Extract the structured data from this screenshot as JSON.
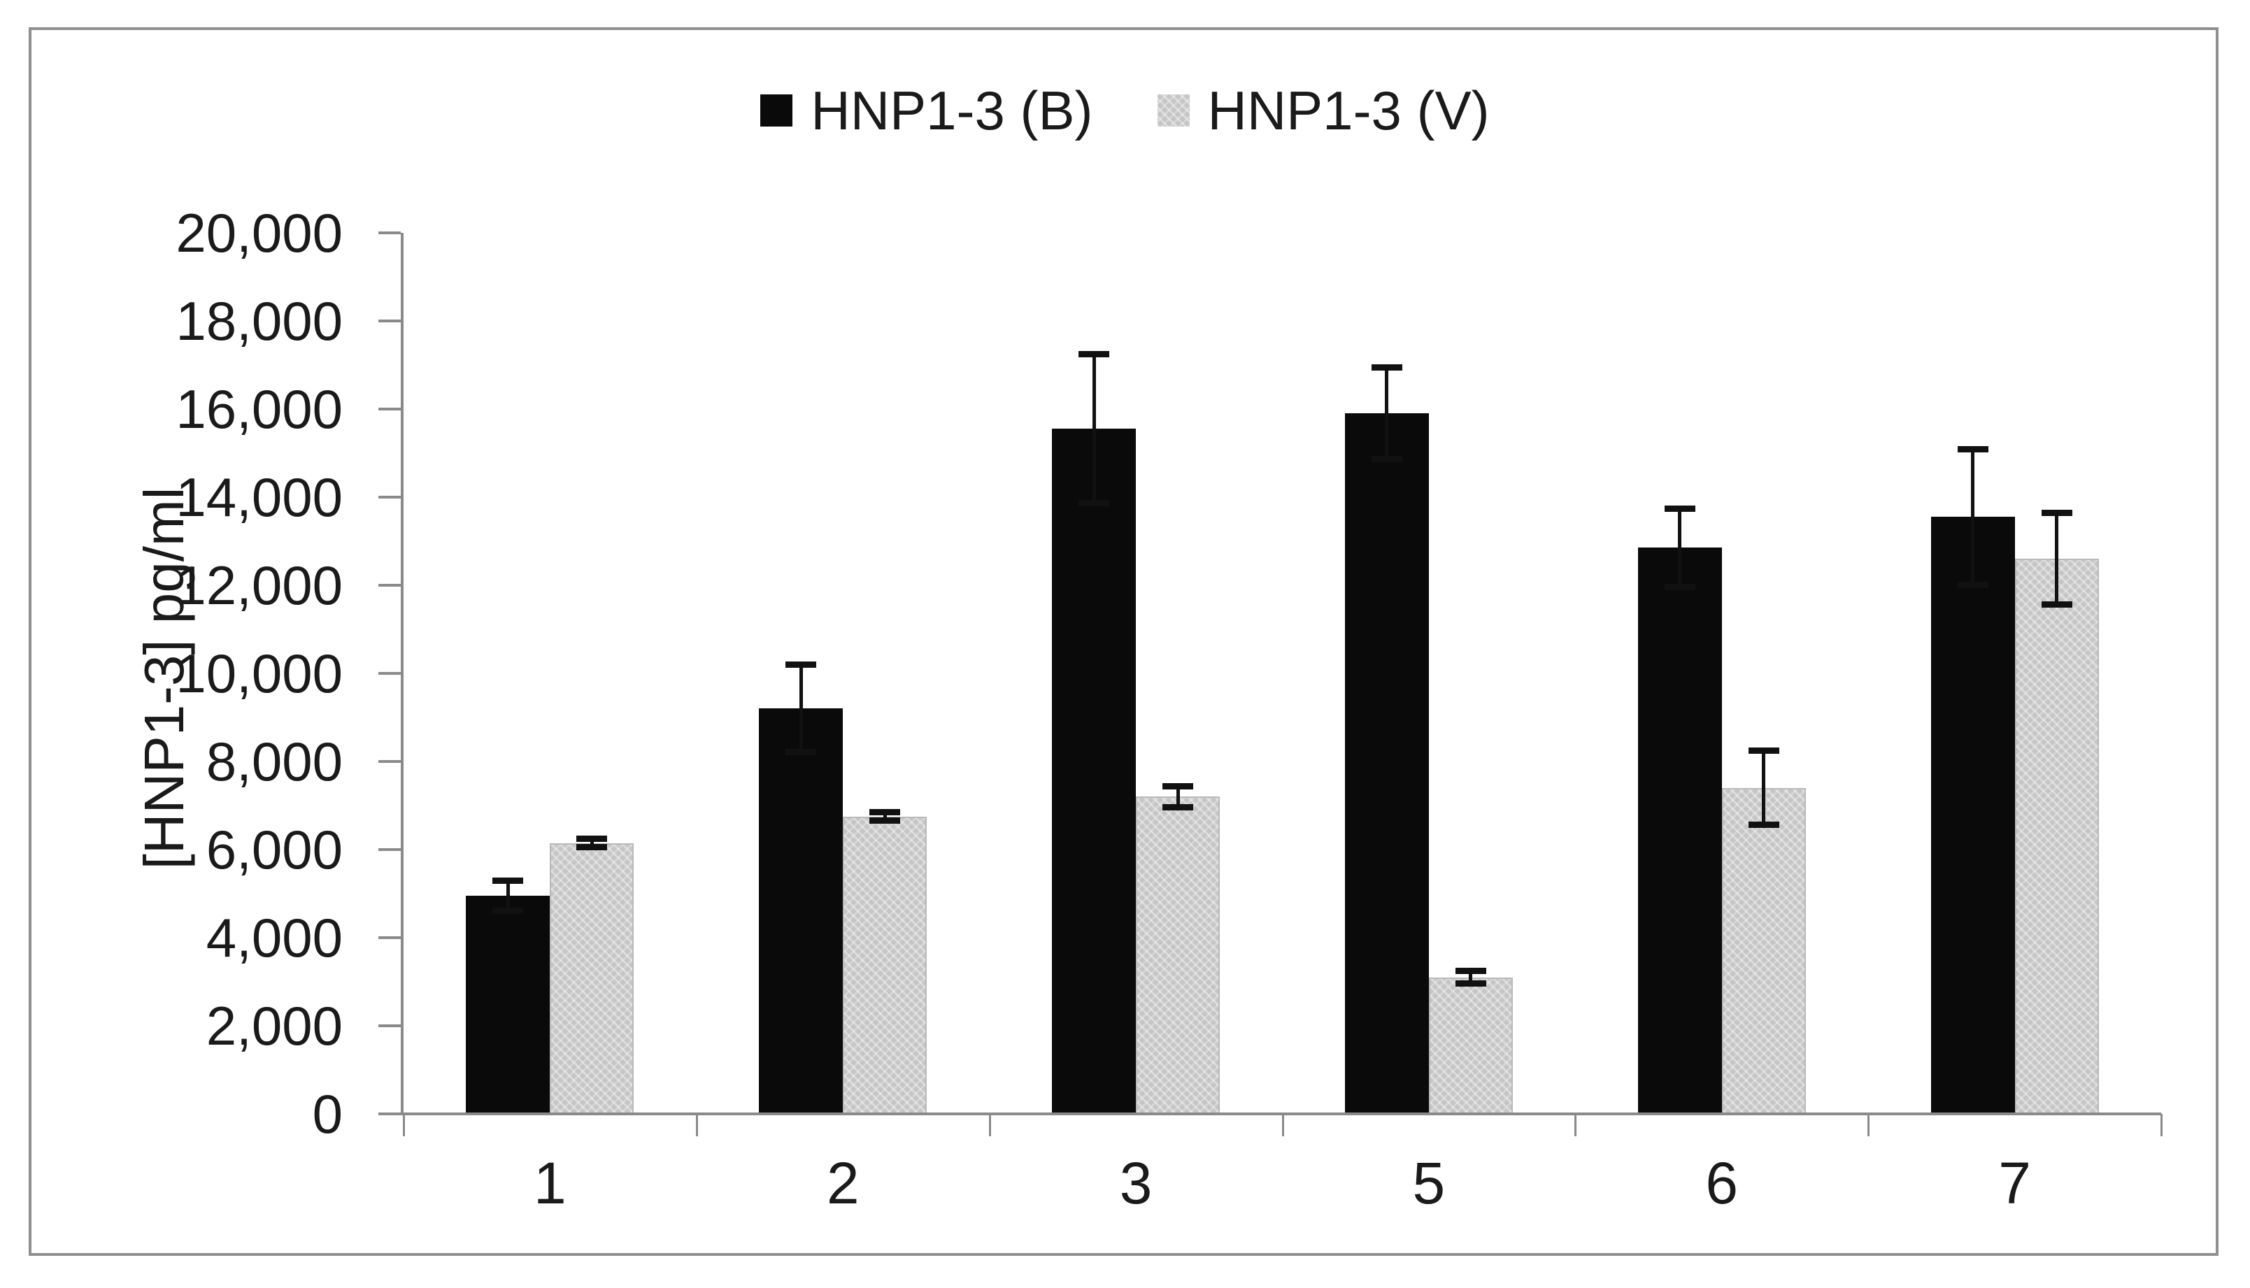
{
  "figure": {
    "background": "#ffffff",
    "border_color": "#8f8f8f"
  },
  "chart_data": {
    "type": "bar",
    "title": "",
    "categories": [
      "1",
      "2",
      "3",
      "5",
      "6",
      "7"
    ],
    "series": [
      {
        "name": "HNP1-3 (B)",
        "color": "#0a0a0a",
        "pattern": "solid-black",
        "values": [
          4950,
          9200,
          15550,
          15900,
          12850,
          13550
        ],
        "errors": [
          350,
          1000,
          1700,
          1050,
          900,
          1550
        ]
      },
      {
        "name": "HNP1-3 (V)",
        "color": "#c5c5c5",
        "pattern": "light-gray-textured",
        "values": [
          6150,
          6750,
          7200,
          3100,
          7400,
          12600
        ],
        "errors": [
          100,
          100,
          250,
          150,
          850,
          1050
        ]
      }
    ],
    "xlabel": "",
    "ylabel": "[HNP1-3] pg/ml",
    "ylim": [
      0,
      20000
    ],
    "ytick_step": 2000,
    "ytick_labels": [
      "0",
      "2,000",
      "4,000",
      "6,000",
      "8,000",
      "10,000",
      "12,000",
      "14,000",
      "16,000",
      "18,000",
      "20,000"
    ],
    "legend_position": "top-center",
    "error_bars": "upper caps on black series, small symmetric caps on gray series",
    "grid": "off",
    "axis_color": "#8a8a8a"
  }
}
